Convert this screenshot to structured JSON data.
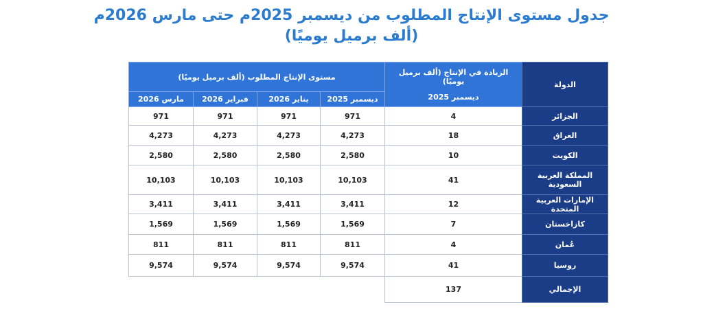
{
  "title": {
    "line1": "جدول مستوى الإنتاج المطلوب من ديسمبر 2025م حتى مارس 2026م",
    "line2": "(ألف برميل يوميًا)"
  },
  "table": {
    "headers": {
      "country": "الدولة",
      "increase": "الزيادة في الإنتاج (ألف برميل يوميًا)",
      "increase_month": "ديسمبر 2025",
      "production": "مستوى الإنتاج المطلوب (ألف برميل يوميًا)",
      "months": [
        "ديسمبر 2025",
        "يناير 2026",
        "فبراير 2026",
        "مارس 2026"
      ]
    },
    "rows": [
      [
        "الجزائر",
        "4",
        "971",
        "971",
        "971",
        "971"
      ],
      [
        "العراق",
        "18",
        "4,273",
        "4,273",
        "4,273",
        "4,273"
      ],
      [
        "الكويت",
        "10",
        "2,580",
        "2,580",
        "2,580",
        "2,580"
      ],
      [
        "المملكة العربية السعودية",
        "41",
        "10,103",
        "10,103",
        "10,103",
        "10,103"
      ],
      [
        "الإمارات العربية المتحدة",
        "12",
        "3,411",
        "3,411",
        "3,411",
        "3,411"
      ],
      [
        "كازاخستان",
        "7",
        "1,569",
        "1,569",
        "1,569",
        "1,569"
      ],
      [
        "عُمان",
        "4",
        "811",
        "811",
        "811",
        "811"
      ],
      [
        "روسيا",
        "41",
        "9,574",
        "9,574",
        "9,574",
        "9,574"
      ]
    ],
    "total": {
      "label": "الإجمالي",
      "value": "137"
    }
  }
}
